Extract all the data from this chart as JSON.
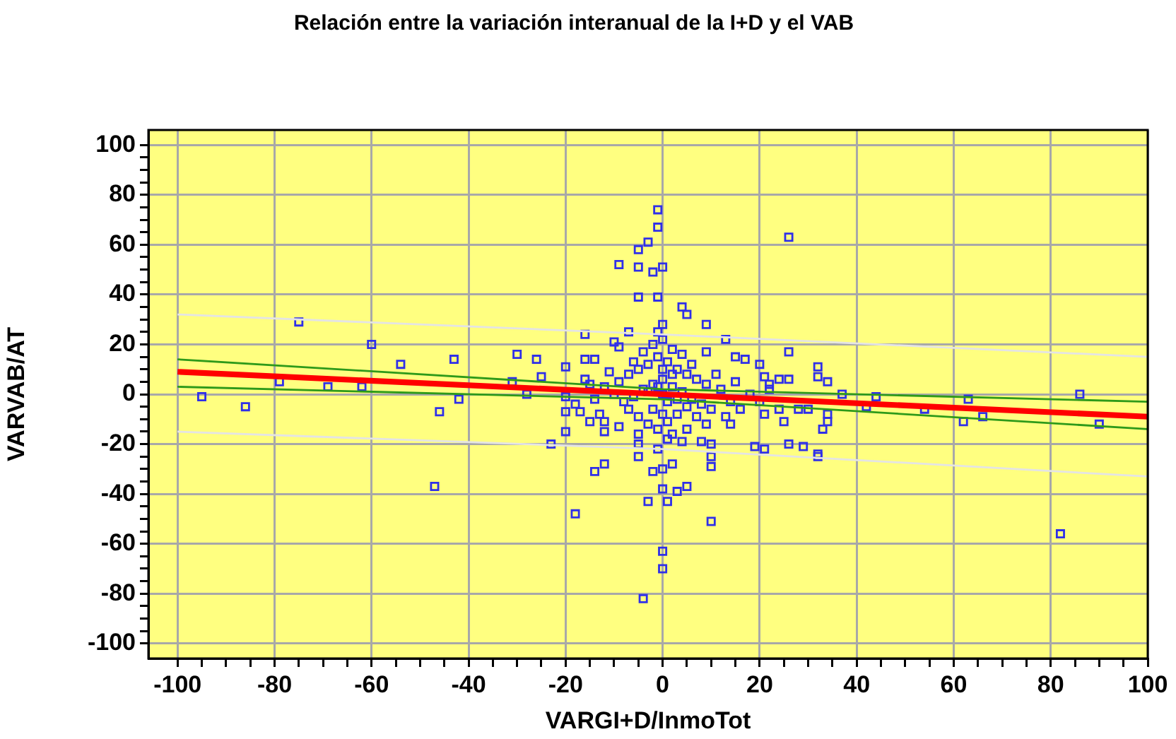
{
  "chart_data": {
    "type": "scatter",
    "title": "Relación entre la variación interanual de la I+D y el VAB",
    "xlabel": "VARGI+D/InmoTot",
    "ylabel": "VARVAB/AT",
    "xlim": [
      -106,
      100
    ],
    "ylim": [
      -106,
      106
    ],
    "xticks": [
      -100,
      {
        "value": -95,
        "label": null
      },
      {
        "value": -90,
        "label": null
      },
      {
        "value": -85,
        "label": null
      },
      -80,
      {
        "value": -75,
        "label": null
      },
      {
        "value": -70,
        "label": null
      },
      {
        "value": -65,
        "label": null
      },
      -60,
      {
        "value": -55,
        "label": null
      },
      {
        "value": -50,
        "label": null
      },
      {
        "value": -45,
        "label": null
      },
      -40,
      {
        "value": -35,
        "label": null
      },
      {
        "value": -30,
        "label": null
      },
      {
        "value": -25,
        "label": null
      },
      -20,
      {
        "value": -15,
        "label": null
      },
      {
        "value": -10,
        "label": null
      },
      {
        "value": -5,
        "label": null
      },
      0,
      {
        "value": 5,
        "label": null
      },
      {
        "value": 10,
        "label": null
      },
      {
        "value": 15,
        "label": null
      },
      20,
      {
        "value": 25,
        "label": null
      },
      {
        "value": 30,
        "label": null
      },
      {
        "value": 35,
        "label": null
      },
      40,
      {
        "value": 45,
        "label": null
      },
      {
        "value": 50,
        "label": null
      },
      {
        "value": 55,
        "label": null
      },
      60,
      {
        "value": 65,
        "label": null
      },
      {
        "value": 70,
        "label": null
      },
      {
        "value": 75,
        "label": null
      },
      80,
      {
        "value": 85,
        "label": null
      },
      {
        "value": 90,
        "label": null
      },
      {
        "value": 95,
        "label": null
      },
      100
    ],
    "yticks": [
      -100,
      {
        "value": -95,
        "label": null
      },
      {
        "value": -90,
        "label": null
      },
      {
        "value": -85,
        "label": null
      },
      -80,
      {
        "value": -75,
        "label": null
      },
      {
        "value": -70,
        "label": null
      },
      {
        "value": -65,
        "label": null
      },
      -60,
      {
        "value": -55,
        "label": null
      },
      {
        "value": -50,
        "label": null
      },
      {
        "value": -45,
        "label": null
      },
      -40,
      {
        "value": -35,
        "label": null
      },
      {
        "value": -30,
        "label": null
      },
      {
        "value": -25,
        "label": null
      },
      -20,
      {
        "value": -15,
        "label": null
      },
      {
        "value": -10,
        "label": null
      },
      {
        "value": -5,
        "label": null
      },
      0,
      {
        "value": 5,
        "label": null
      },
      {
        "value": 10,
        "label": null
      },
      {
        "value": 15,
        "label": null
      },
      20,
      {
        "value": 25,
        "label": null
      },
      {
        "value": 30,
        "label": null
      },
      {
        "value": 35,
        "label": null
      },
      40,
      {
        "value": 45,
        "label": null
      },
      {
        "value": 50,
        "label": null
      },
      {
        "value": 55,
        "label": null
      },
      60,
      {
        "value": 65,
        "label": null
      },
      {
        "value": 70,
        "label": null
      },
      {
        "value": 75,
        "label": null
      },
      80,
      {
        "value": 85,
        "label": null
      },
      {
        "value": 90,
        "label": null
      },
      {
        "value": 95,
        "label": null
      },
      100
    ],
    "grid": true,
    "legend": false,
    "marker": "square",
    "series": [
      {
        "color": "#2f2fe8",
        "x": [
          -95,
          -86,
          -75,
          -79,
          -69,
          -62,
          -60,
          -54,
          -43,
          -42,
          -46,
          -47,
          -1,
          -1,
          -3,
          -5,
          -9,
          -5,
          -2,
          0,
          26,
          -5,
          -1,
          4,
          5,
          9,
          13,
          26,
          -16,
          -7,
          -10,
          -9,
          -30,
          -26,
          -20,
          -16,
          -14,
          -31,
          -25,
          -28,
          9,
          20,
          17,
          15,
          24,
          26,
          32,
          21,
          22,
          -23,
          -20,
          -14,
          -12,
          -18,
          -3,
          1,
          0,
          3,
          5,
          10,
          0,
          0,
          -4,
          -2,
          0,
          2,
          -5,
          10,
          10,
          10,
          8,
          4,
          -5,
          -12,
          19,
          21,
          26,
          29,
          32,
          21,
          24,
          28,
          30,
          25,
          14,
          -20,
          -17,
          -15,
          -12,
          -9,
          32,
          34,
          37,
          44,
          63,
          86,
          34,
          34,
          33,
          32,
          42,
          54,
          62,
          66,
          90,
          82,
          -9,
          -7,
          -5,
          -3,
          -1,
          1,
          3,
          5,
          7,
          9,
          -8,
          -6,
          -4,
          -2,
          0,
          2,
          4,
          6,
          8,
          10,
          -10,
          -7,
          -5,
          -3,
          -1,
          1,
          3,
          5,
          7,
          9,
          -2,
          0,
          2,
          -4,
          4,
          0,
          -1,
          1,
          -1,
          2,
          -12,
          -14,
          12,
          14,
          16,
          -16,
          -18,
          18,
          11,
          -11,
          0,
          -1,
          1,
          2,
          -2,
          3,
          -3,
          0,
          0,
          6,
          -6,
          5,
          -5,
          13,
          -13,
          15,
          -15,
          20,
          22,
          -20
        ],
        "values": [
          -1,
          -5,
          29,
          5,
          3,
          3,
          20,
          12,
          14,
          -2,
          -7,
          -37,
          74,
          67,
          61,
          58,
          52,
          51,
          49,
          51,
          63,
          39,
          39,
          35,
          32,
          28,
          22,
          17,
          24,
          25,
          21,
          19,
          16,
          14,
          11,
          14,
          14,
          5,
          7,
          0,
          17,
          12,
          14,
          15,
          6,
          6,
          11,
          7,
          4,
          -20,
          -15,
          -31,
          -28,
          -48,
          -43,
          -43,
          -38,
          -39,
          -37,
          -51,
          -63,
          -70,
          -82,
          -31,
          -30,
          -28,
          -25,
          -29,
          -25,
          -20,
          -19,
          -19,
          -20,
          -15,
          -21,
          -22,
          -20,
          -21,
          -24,
          -8,
          -6,
          -6,
          -6,
          -11,
          -12,
          -7,
          -7,
          -11,
          -11,
          -13,
          7,
          5,
          0,
          -1,
          -2,
          0,
          -8,
          -11,
          -14,
          -25,
          -5,
          -6,
          -11,
          -9,
          -12,
          -56,
          5,
          8,
          10,
          12,
          15,
          13,
          10,
          8,
          6,
          4,
          -3,
          -1,
          2,
          4,
          6,
          3,
          1,
          -2,
          -4,
          -6,
          0,
          -6,
          -9,
          -12,
          -14,
          -11,
          -8,
          -5,
          -9,
          -12,
          20,
          22,
          18,
          17,
          16,
          28,
          25,
          -18,
          -22,
          -16,
          3,
          -2,
          2,
          -3,
          -6,
          6,
          -4,
          0,
          8,
          9,
          0,
          3,
          -3,
          8,
          -6,
          -2,
          1,
          10,
          -8,
          12,
          13,
          -14,
          -16,
          -9,
          -8,
          5,
          4,
          -3,
          2,
          -1
        ]
      },
      {
        "type": "line",
        "marker": "none",
        "color": "#ff0000",
        "x": [
          -100,
          0,
          100
        ],
        "values": [
          9,
          0,
          -9
        ]
      },
      {
        "type": "line",
        "marker": "none",
        "color": "#2e9a1a",
        "x": [
          -100,
          0,
          100
        ],
        "values": [
          14,
          2,
          -3
        ]
      },
      {
        "type": "line",
        "marker": "none",
        "color": "#2e9a1a",
        "x": [
          -100,
          0,
          100
        ],
        "values": [
          3,
          -2,
          -14
        ]
      },
      {
        "type": "line",
        "marker": "none",
        "color": "#e4e4e4",
        "x": [
          -100,
          0,
          100
        ],
        "values": [
          32,
          24,
          15
        ]
      },
      {
        "type": "line",
        "marker": "none",
        "color": "#e4e4e4",
        "x": [
          -100,
          0,
          100
        ],
        "values": [
          -15,
          -22,
          -33
        ]
      }
    ]
  }
}
